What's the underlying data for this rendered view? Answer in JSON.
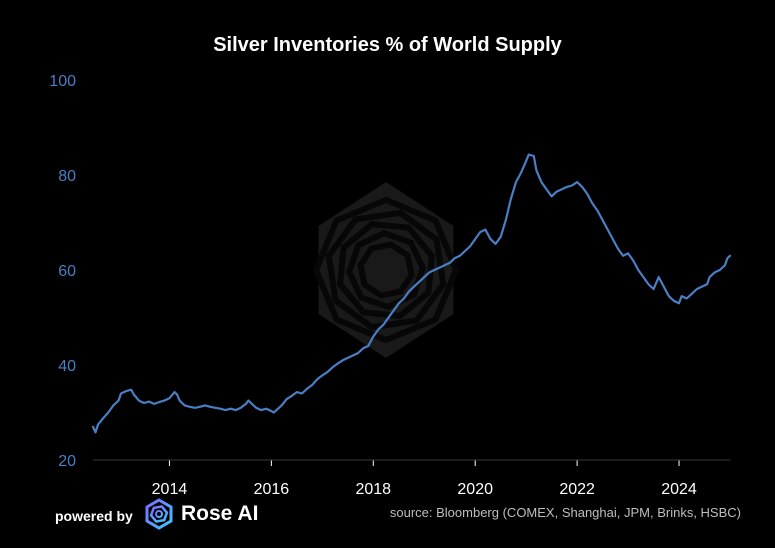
{
  "footer": {
    "powered_by": "powered by",
    "brand": "Rose AI",
    "source": "source: Bloomberg (COMEX, Shanghai, JPM, Brinks, HSBC)"
  },
  "colors": {
    "background": "#000000",
    "line": "#4a7fc4",
    "ytick": "#4a7fc4",
    "xtick": "#ffffff",
    "watermark": "#5a5a5a"
  },
  "chart_data": {
    "type": "line",
    "title": "Silver Inventories % of World Supply",
    "xlabel": "",
    "ylabel": "",
    "xlim": [
      2012.5,
      2025.0
    ],
    "ylim": [
      20,
      100
    ],
    "yticks": [
      20,
      40,
      60,
      80,
      100
    ],
    "xticks": [
      2014,
      2016,
      2018,
      2020,
      2022,
      2024
    ],
    "grid": false,
    "watermark": "rose-ai-logo",
    "series": [
      {
        "values": [
          [
            2012.5,
            27.0
          ],
          [
            2012.55,
            25.8
          ],
          [
            2012.6,
            27.5
          ],
          [
            2012.7,
            28.8
          ],
          [
            2012.8,
            30.0
          ],
          [
            2012.9,
            31.5
          ],
          [
            2013.0,
            32.5
          ],
          [
            2013.05,
            34.0
          ],
          [
            2013.15,
            34.5
          ],
          [
            2013.25,
            34.8
          ],
          [
            2013.3,
            33.8
          ],
          [
            2013.4,
            32.5
          ],
          [
            2013.5,
            32.0
          ],
          [
            2013.6,
            32.3
          ],
          [
            2013.7,
            31.8
          ],
          [
            2013.8,
            32.2
          ],
          [
            2013.9,
            32.5
          ],
          [
            2014.0,
            33.0
          ],
          [
            2014.1,
            34.3
          ],
          [
            2014.15,
            33.8
          ],
          [
            2014.2,
            32.5
          ],
          [
            2014.3,
            31.5
          ],
          [
            2014.4,
            31.2
          ],
          [
            2014.5,
            31.0
          ],
          [
            2014.6,
            31.2
          ],
          [
            2014.7,
            31.5
          ],
          [
            2014.8,
            31.2
          ],
          [
            2014.9,
            31.0
          ],
          [
            2015.0,
            30.8
          ],
          [
            2015.1,
            30.5
          ],
          [
            2015.2,
            30.8
          ],
          [
            2015.3,
            30.5
          ],
          [
            2015.4,
            31.0
          ],
          [
            2015.5,
            31.8
          ],
          [
            2015.55,
            32.5
          ],
          [
            2015.6,
            32.0
          ],
          [
            2015.7,
            31.0
          ],
          [
            2015.8,
            30.5
          ],
          [
            2015.9,
            30.8
          ],
          [
            2016.0,
            30.3
          ],
          [
            2016.05,
            30.0
          ],
          [
            2016.1,
            30.5
          ],
          [
            2016.2,
            31.5
          ],
          [
            2016.3,
            32.8
          ],
          [
            2016.4,
            33.5
          ],
          [
            2016.5,
            34.3
          ],
          [
            2016.6,
            34.0
          ],
          [
            2016.7,
            35.0
          ],
          [
            2016.8,
            35.8
          ],
          [
            2016.9,
            37.0
          ],
          [
            2017.0,
            37.8
          ],
          [
            2017.1,
            38.5
          ],
          [
            2017.2,
            39.5
          ],
          [
            2017.3,
            40.3
          ],
          [
            2017.4,
            41.0
          ],
          [
            2017.5,
            41.5
          ],
          [
            2017.6,
            42.0
          ],
          [
            2017.7,
            42.5
          ],
          [
            2017.8,
            43.5
          ],
          [
            2017.9,
            44.0
          ],
          [
            2018.0,
            46.0
          ],
          [
            2018.1,
            47.5
          ],
          [
            2018.2,
            48.5
          ],
          [
            2018.3,
            50.0
          ],
          [
            2018.4,
            51.5
          ],
          [
            2018.5,
            53.0
          ],
          [
            2018.6,
            54.0
          ],
          [
            2018.7,
            55.5
          ],
          [
            2018.8,
            56.5
          ],
          [
            2018.9,
            57.5
          ],
          [
            2019.0,
            58.5
          ],
          [
            2019.1,
            59.5
          ],
          [
            2019.2,
            60.0
          ],
          [
            2019.3,
            60.5
          ],
          [
            2019.4,
            61.0
          ],
          [
            2019.5,
            61.5
          ],
          [
            2019.6,
            62.5
          ],
          [
            2019.7,
            63.0
          ],
          [
            2019.8,
            64.0
          ],
          [
            2019.9,
            65.0
          ],
          [
            2020.0,
            66.5
          ],
          [
            2020.1,
            68.0
          ],
          [
            2020.2,
            68.5
          ],
          [
            2020.3,
            66.5
          ],
          [
            2020.4,
            65.5
          ],
          [
            2020.5,
            67.0
          ],
          [
            2020.6,
            70.5
          ],
          [
            2020.7,
            75.0
          ],
          [
            2020.8,
            78.5
          ],
          [
            2020.9,
            80.5
          ],
          [
            2021.0,
            83.0
          ],
          [
            2021.05,
            84.3
          ],
          [
            2021.15,
            84.0
          ],
          [
            2021.2,
            81.0
          ],
          [
            2021.3,
            78.5
          ],
          [
            2021.4,
            77.0
          ],
          [
            2021.5,
            75.5
          ],
          [
            2021.6,
            76.5
          ],
          [
            2021.7,
            77.0
          ],
          [
            2021.8,
            77.5
          ],
          [
            2021.9,
            77.8
          ],
          [
            2022.0,
            78.5
          ],
          [
            2022.1,
            77.5
          ],
          [
            2022.2,
            76.0
          ],
          [
            2022.3,
            74.0
          ],
          [
            2022.4,
            72.5
          ],
          [
            2022.5,
            70.5
          ],
          [
            2022.6,
            68.5
          ],
          [
            2022.7,
            66.5
          ],
          [
            2022.8,
            64.5
          ],
          [
            2022.9,
            63.0
          ],
          [
            2023.0,
            63.5
          ],
          [
            2023.1,
            62.0
          ],
          [
            2023.2,
            60.0
          ],
          [
            2023.3,
            58.5
          ],
          [
            2023.4,
            57.0
          ],
          [
            2023.5,
            56.0
          ],
          [
            2023.6,
            58.5
          ],
          [
            2023.7,
            56.5
          ],
          [
            2023.8,
            54.5
          ],
          [
            2023.9,
            53.5
          ],
          [
            2024.0,
            53.0
          ],
          [
            2024.05,
            54.5
          ],
          [
            2024.15,
            54.0
          ],
          [
            2024.25,
            55.0
          ],
          [
            2024.35,
            56.0
          ],
          [
            2024.45,
            56.5
          ],
          [
            2024.55,
            57.0
          ],
          [
            2024.6,
            58.5
          ],
          [
            2024.7,
            59.5
          ],
          [
            2024.8,
            60.0
          ],
          [
            2024.9,
            61.0
          ],
          [
            2024.95,
            62.5
          ],
          [
            2025.0,
            63.0
          ]
        ]
      }
    ]
  }
}
